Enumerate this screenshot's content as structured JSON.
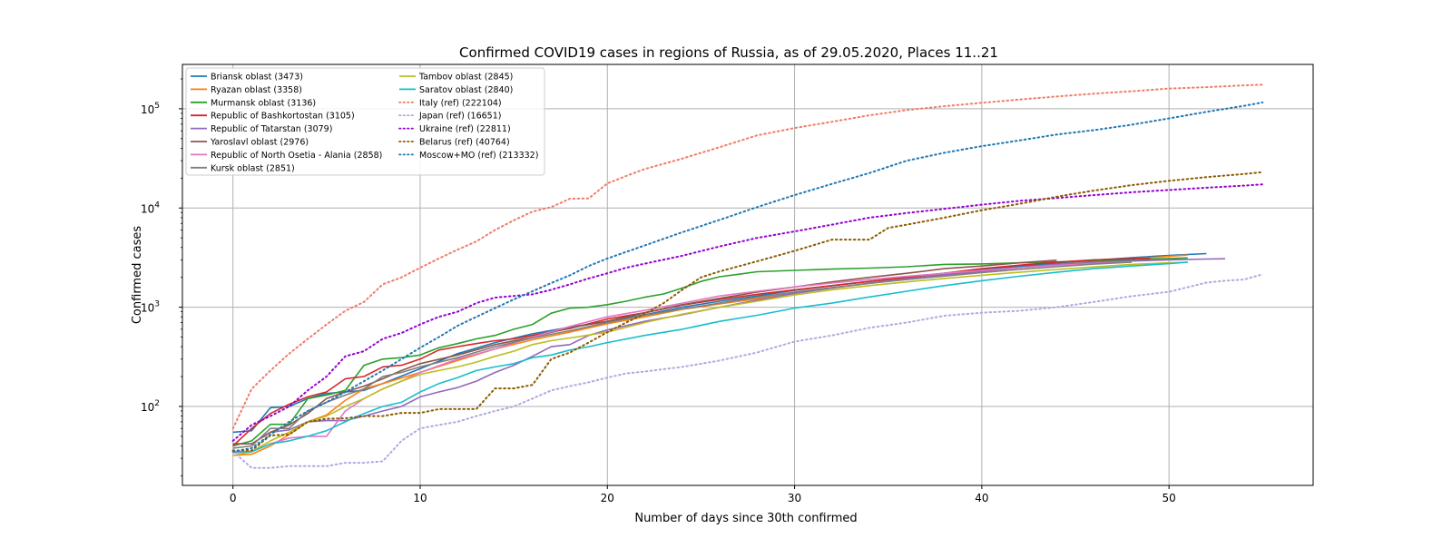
{
  "chart_data": {
    "type": "line",
    "title": "Confirmed COVID19 cases in regions of Russia, as of 29.05.2020, Places 11..21",
    "xlabel": "Number of days since 30th confirmed",
    "ylabel": "Confirmed cases",
    "xlim": [
      -2.7,
      57.7
    ],
    "ylim": [
      16,
      280000
    ],
    "yscale": "log",
    "grid": true,
    "legend_position": "top-left",
    "x_ticks": [
      0,
      10,
      20,
      30,
      40,
      50
    ],
    "y_ticks": [
      {
        "value": 100,
        "base": "10",
        "exp": "2"
      },
      {
        "value": 1000,
        "base": "10",
        "exp": "3"
      },
      {
        "value": 10000,
        "base": "10",
        "exp": "4"
      },
      {
        "value": 100000,
        "base": "10",
        "exp": "5"
      }
    ],
    "series": [
      {
        "name": "Briansk oblast (3473)",
        "color": "#1f77b4",
        "style": "solid",
        "x": [
          0,
          1,
          2,
          3,
          4,
          5,
          6,
          7,
          8,
          10,
          12,
          14,
          16,
          18,
          20,
          22,
          24,
          26,
          28,
          30,
          32,
          34,
          36,
          38,
          40,
          42,
          44,
          46,
          48,
          50,
          52
        ],
        "y": [
          55,
          57,
          97,
          100,
          120,
          135,
          140,
          145,
          170,
          240,
          340,
          440,
          540,
          630,
          720,
          840,
          1000,
          1150,
          1300,
          1480,
          1650,
          1820,
          2000,
          2200,
          2400,
          2580,
          2780,
          2980,
          3160,
          3330,
          3473
        ]
      },
      {
        "name": "Ryazan oblast (3358)",
        "color": "#ff7f0e",
        "style": "solid",
        "x": [
          0,
          1,
          2,
          3,
          4,
          5,
          6,
          7,
          8,
          10,
          12,
          14,
          16,
          18,
          20,
          22,
          24,
          26,
          28,
          30,
          32,
          34,
          36,
          38,
          40,
          42,
          44,
          46,
          48,
          51
        ],
        "y": [
          32,
          33,
          40,
          52,
          70,
          82,
          115,
          150,
          170,
          220,
          290,
          380,
          470,
          560,
          680,
          800,
          950,
          1080,
          1220,
          1380,
          1560,
          1740,
          1920,
          2110,
          2300,
          2500,
          2690,
          2880,
          3060,
          3358
        ]
      },
      {
        "name": "Murmansk oblast (3136)",
        "color": "#2ca02c",
        "style": "solid",
        "x": [
          0,
          1,
          2,
          3,
          4,
          5,
          6,
          7,
          8,
          9,
          10,
          11,
          12,
          13,
          14,
          15,
          16,
          17,
          18,
          19,
          20,
          21,
          22,
          23,
          24,
          25,
          26,
          27,
          28,
          30,
          32,
          34,
          36,
          38,
          40,
          42,
          44,
          46,
          48,
          50,
          51
        ],
        "y": [
          40,
          45,
          66,
          66,
          120,
          130,
          145,
          260,
          300,
          310,
          330,
          390,
          430,
          480,
          520,
          600,
          670,
          870,
          980,
          1000,
          1060,
          1150,
          1260,
          1360,
          1560,
          1820,
          2030,
          2150,
          2280,
          2350,
          2420,
          2480,
          2560,
          2700,
          2730,
          2800,
          2860,
          2920,
          3010,
          3100,
          3136
        ]
      },
      {
        "name": "Republic of Bashkortostan (3105)",
        "color": "#d62728",
        "style": "solid",
        "x": [
          0,
          1,
          2,
          3,
          4,
          5,
          6,
          7,
          8,
          9,
          10,
          11,
          12,
          13,
          14,
          15,
          16,
          18,
          20,
          22,
          24,
          26,
          28,
          30,
          32,
          34,
          36,
          38,
          40,
          42,
          44,
          46,
          48,
          49
        ],
        "y": [
          40,
          60,
          85,
          105,
          125,
          140,
          190,
          200,
          250,
          260,
          300,
          370,
          400,
          430,
          460,
          480,
          520,
          610,
          760,
          880,
          1050,
          1200,
          1350,
          1500,
          1650,
          1820,
          2000,
          2200,
          2450,
          2650,
          2850,
          3000,
          3080,
          3105
        ]
      },
      {
        "name": "Republic of Tatarstan (3079)",
        "color": "#9467bd",
        "style": "solid",
        "x": [
          0,
          1,
          2,
          3,
          4,
          5,
          6,
          7,
          8,
          9,
          10,
          11,
          12,
          13,
          14,
          15,
          16,
          17,
          18,
          19,
          20,
          22,
          24,
          26,
          28,
          30,
          32,
          34,
          36,
          38,
          40,
          42,
          44,
          46,
          48,
          50,
          52,
          53
        ],
        "y": [
          42,
          42,
          55,
          58,
          70,
          72,
          72,
          80,
          90,
          100,
          125,
          140,
          155,
          180,
          220,
          260,
          320,
          400,
          420,
          520,
          590,
          720,
          840,
          1000,
          1180,
          1380,
          1560,
          1750,
          1930,
          2130,
          2300,
          2500,
          2700,
          2830,
          2920,
          3000,
          3060,
          3079
        ]
      },
      {
        "name": "Yaroslavl oblast (2976)",
        "color": "#8c564b",
        "style": "solid",
        "x": [
          0,
          1,
          2,
          3,
          4,
          5,
          6,
          7,
          8,
          9,
          10,
          12,
          14,
          16,
          18,
          20,
          22,
          24,
          26,
          28,
          30,
          32,
          34,
          36,
          38,
          40,
          42,
          44
        ],
        "y": [
          42,
          42,
          55,
          65,
          85,
          120,
          140,
          160,
          190,
          230,
          270,
          330,
          420,
          500,
          620,
          720,
          880,
          1060,
          1230,
          1420,
          1600,
          1800,
          2000,
          2200,
          2450,
          2600,
          2800,
          2976
        ]
      },
      {
        "name": "Republic of North Osetia - Alania (2858)",
        "color": "#e377c2",
        "style": "solid",
        "x": [
          0,
          1,
          2,
          3,
          4,
          5,
          6,
          7,
          8,
          9,
          10,
          12,
          14,
          16,
          18,
          20,
          22,
          24,
          26,
          28,
          30,
          32,
          34,
          36,
          38,
          40,
          42,
          44,
          46,
          48
        ],
        "y": [
          34,
          35,
          42,
          48,
          50,
          50,
          90,
          120,
          150,
          180,
          220,
          300,
          380,
          500,
          640,
          800,
          930,
          1100,
          1300,
          1450,
          1600,
          1750,
          1900,
          2050,
          2200,
          2350,
          2500,
          2640,
          2760,
          2858
        ]
      },
      {
        "name": "Kursk oblast (2851)",
        "color": "#7f7f7f",
        "style": "solid",
        "x": [
          0,
          1,
          2,
          3,
          4,
          5,
          6,
          7,
          8,
          9,
          10,
          12,
          14,
          16,
          18,
          20,
          22,
          24,
          26,
          28,
          30,
          32,
          34,
          36,
          38,
          40,
          42,
          44,
          46,
          48
        ],
        "y": [
          38,
          40,
          60,
          60,
          90,
          110,
          130,
          150,
          200,
          220,
          250,
          310,
          400,
          490,
          580,
          700,
          830,
          960,
          1100,
          1260,
          1420,
          1580,
          1740,
          1900,
          2060,
          2230,
          2400,
          2560,
          2720,
          2851
        ]
      },
      {
        "name": "Tambov oblast (2845)",
        "color": "#bcbd22",
        "style": "solid",
        "x": [
          0,
          1,
          2,
          3,
          4,
          5,
          6,
          7,
          8,
          9,
          10,
          11,
          12,
          13,
          14,
          15,
          16,
          17,
          18,
          20,
          22,
          24,
          26,
          28,
          30,
          32,
          34,
          36,
          38,
          40,
          42,
          44,
          46,
          48,
          50,
          51
        ],
        "y": [
          32,
          35,
          45,
          55,
          70,
          80,
          100,
          120,
          150,
          180,
          210,
          230,
          250,
          280,
          320,
          360,
          420,
          460,
          490,
          560,
          700,
          850,
          1000,
          1150,
          1330,
          1500,
          1650,
          1800,
          1950,
          2100,
          2250,
          2400,
          2550,
          2700,
          2800,
          2845
        ]
      },
      {
        "name": "Saratov oblast (2840)",
        "color": "#17becf",
        "style": "solid",
        "x": [
          0,
          1,
          2,
          3,
          4,
          5,
          6,
          7,
          8,
          9,
          10,
          11,
          12,
          13,
          14,
          15,
          16,
          17,
          18,
          19,
          20,
          22,
          24,
          26,
          28,
          30,
          32,
          34,
          36,
          38,
          40,
          42,
          44,
          46,
          48,
          50,
          51
        ],
        "y": [
          35,
          35,
          42,
          45,
          50,
          57,
          70,
          85,
          100,
          110,
          140,
          170,
          195,
          230,
          250,
          270,
          310,
          330,
          370,
          400,
          440,
          520,
          600,
          720,
          830,
          980,
          1100,
          1270,
          1450,
          1650,
          1850,
          2050,
          2250,
          2450,
          2600,
          2750,
          2840
        ]
      },
      {
        "name": "Italy (ref) (222104)",
        "color": "#ef7d6a",
        "style": "dotted",
        "x": [
          0,
          1,
          2,
          3,
          4,
          5,
          6,
          7,
          8,
          9,
          10,
          11,
          12,
          13,
          14,
          15,
          16,
          17,
          18,
          19,
          20,
          21,
          22,
          24,
          26,
          28,
          30,
          32,
          34,
          36,
          38,
          40,
          42,
          44,
          46,
          48,
          50,
          52,
          54,
          55
        ],
        "y": [
          60,
          150,
          230,
          340,
          480,
          670,
          920,
          1130,
          1700,
          2000,
          2500,
          3100,
          3800,
          4600,
          6000,
          7500,
          9200,
          10200,
          12400,
          12500,
          17700,
          21000,
          24700,
          31500,
          41000,
          54000,
          64000,
          74000,
          86000,
          97000,
          106000,
          115000,
          124000,
          133000,
          142000,
          150000,
          160000,
          165000,
          172000,
          175000
        ]
      },
      {
        "name": "Japan (ref) (16651)",
        "color": "#b4a7e0",
        "style": "dotted",
        "x": [
          0,
          1,
          2,
          3,
          4,
          5,
          6,
          7,
          8,
          9,
          10,
          11,
          12,
          13,
          14,
          15,
          16,
          17,
          18,
          19,
          20,
          21,
          22,
          24,
          26,
          28,
          30,
          32,
          34,
          36,
          38,
          40,
          42,
          44,
          46,
          48,
          50,
          52,
          53,
          54,
          55
        ],
        "y": [
          35,
          24,
          24,
          25,
          25,
          25,
          27,
          27,
          28,
          45,
          60,
          65,
          70,
          80,
          90,
          100,
          120,
          145,
          160,
          175,
          195,
          215,
          225,
          250,
          290,
          350,
          450,
          520,
          620,
          700,
          820,
          880,
          920,
          1000,
          1130,
          1290,
          1430,
          1770,
          1850,
          1900,
          2150
        ]
      },
      {
        "name": "Ukraine (ref) (22811)",
        "color": "#9400d3",
        "style": "dotted",
        "x": [
          0,
          1,
          2,
          3,
          4,
          5,
          6,
          7,
          8,
          9,
          10,
          11,
          12,
          13,
          14,
          15,
          16,
          17,
          18,
          19,
          20,
          21,
          22,
          24,
          26,
          28,
          30,
          32,
          34,
          36,
          38,
          40,
          42,
          44,
          46,
          48,
          50,
          52,
          54,
          55
        ],
        "y": [
          45,
          65,
          80,
          100,
          145,
          200,
          320,
          360,
          480,
          550,
          670,
          800,
          900,
          1100,
          1250,
          1300,
          1350,
          1500,
          1700,
          1950,
          2200,
          2500,
          2750,
          3300,
          4100,
          5000,
          5800,
          6800,
          8000,
          8900,
          9800,
          10800,
          11800,
          12600,
          13500,
          14400,
          15200,
          16000,
          16800,
          17300
        ]
      },
      {
        "name": "Belarus (ref) (40764)",
        "color": "#8b5a00",
        "style": "dotted",
        "x": [
          0,
          1,
          2,
          3,
          4,
          5,
          6,
          7,
          8,
          9,
          10,
          11,
          12,
          13,
          14,
          15,
          16,
          17,
          18,
          19,
          20,
          21,
          22,
          23,
          24,
          25,
          26,
          28,
          30,
          32,
          34,
          35,
          36,
          38,
          40,
          42,
          44,
          46,
          48,
          50,
          52,
          54,
          55
        ],
        "y": [
          36,
          36,
          51,
          52,
          70,
          75,
          76,
          80,
          80,
          86,
          86,
          94,
          94,
          94,
          152,
          152,
          165,
          300,
          350,
          440,
          560,
          700,
          860,
          1100,
          1500,
          2000,
          2300,
          2900,
          3700,
          4800,
          4800,
          6300,
          6800,
          8000,
          9500,
          11000,
          13000,
          15000,
          17000,
          18800,
          20500,
          22000,
          23000
        ]
      },
      {
        "name": "Moscow+MO (ref) (213332)",
        "color": "#1f77b4",
        "style": "dotted",
        "x": [
          0,
          1,
          2,
          3,
          4,
          5,
          6,
          7,
          8,
          9,
          10,
          11,
          12,
          13,
          14,
          15,
          16,
          17,
          18,
          19,
          20,
          22,
          24,
          26,
          28,
          30,
          32,
          34,
          36,
          38,
          40,
          42,
          44,
          46,
          48,
          50,
          52,
          54,
          55
        ],
        "y": [
          35,
          38,
          52,
          70,
          90,
          110,
          140,
          180,
          230,
          300,
          390,
          500,
          650,
          800,
          980,
          1200,
          1450,
          1750,
          2100,
          2600,
          3100,
          4200,
          5700,
          7600,
          10200,
          13500,
          17500,
          22500,
          30000,
          36000,
          42000,
          48000,
          55000,
          61000,
          69000,
          80000,
          93000,
          107000,
          116000
        ]
      }
    ]
  }
}
